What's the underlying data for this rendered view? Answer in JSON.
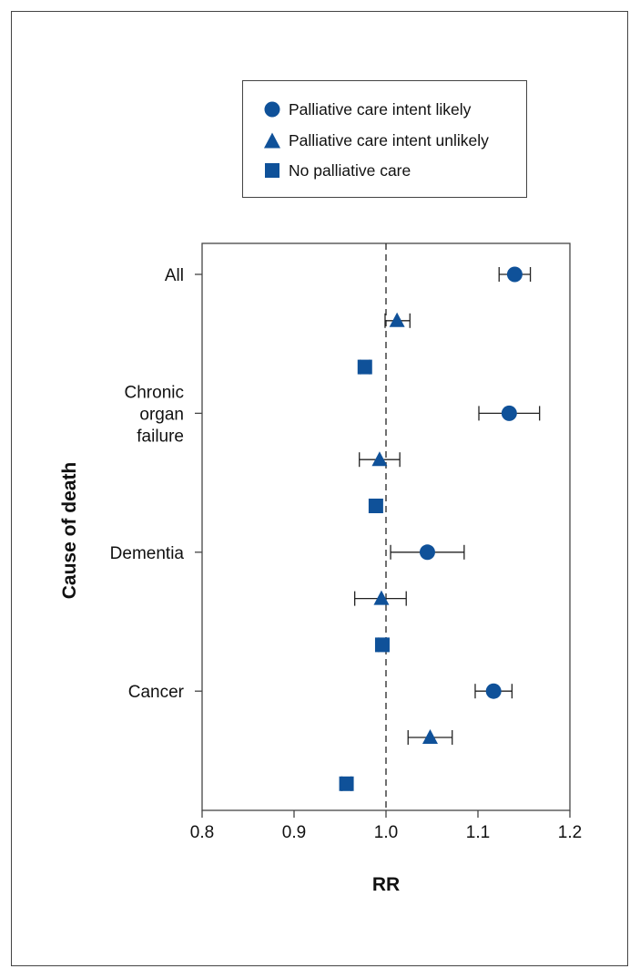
{
  "colors": {
    "marker": "#0f5199",
    "axis": "#444444",
    "text": "#111111"
  },
  "legend": {
    "items": [
      {
        "label": "Palliative care intent likely",
        "shape": "circle"
      },
      {
        "label": "Palliative care intent unlikely",
        "shape": "triangle"
      },
      {
        "label": "No palliative care",
        "shape": "square"
      }
    ]
  },
  "chart_data": {
    "type": "forest",
    "title": "",
    "xlabel": "RR",
    "ylabel": "Cause of death",
    "xlim": [
      0.8,
      1.2
    ],
    "xticks": [
      "0.8",
      "0.9",
      "1.0",
      "1.1",
      "1.2"
    ],
    "reference_line": 1.0,
    "categories": [
      {
        "label_lines": [
          "All"
        ]
      },
      {
        "label_lines": [
          "Chronic",
          "organ",
          "failure"
        ]
      },
      {
        "label_lines": [
          "Dementia"
        ]
      },
      {
        "label_lines": [
          "Cancer"
        ]
      }
    ],
    "series": [
      {
        "name": "Palliative care intent likely",
        "shape": "circle",
        "values": [
          1.14,
          1.134,
          1.045,
          1.117
        ],
        "ci_low": [
          1.123,
          1.101,
          1.005,
          1.097
        ],
        "ci_high": [
          1.157,
          1.167,
          1.085,
          1.137
        ]
      },
      {
        "name": "Palliative care intent unlikely",
        "shape": "triangle",
        "values": [
          1.012,
          0.993,
          0.995,
          1.048
        ],
        "ci_low": [
          0.999,
          0.971,
          0.966,
          1.024
        ],
        "ci_high": [
          1.026,
          1.015,
          1.022,
          1.072
        ]
      },
      {
        "name": "No palliative care",
        "shape": "square",
        "values": [
          0.977,
          0.989,
          0.996,
          0.957
        ],
        "ci_low": [
          0.972,
          0.984,
          0.992,
          0.952
        ],
        "ci_high": [
          0.982,
          0.994,
          1.0,
          0.962
        ]
      }
    ]
  }
}
